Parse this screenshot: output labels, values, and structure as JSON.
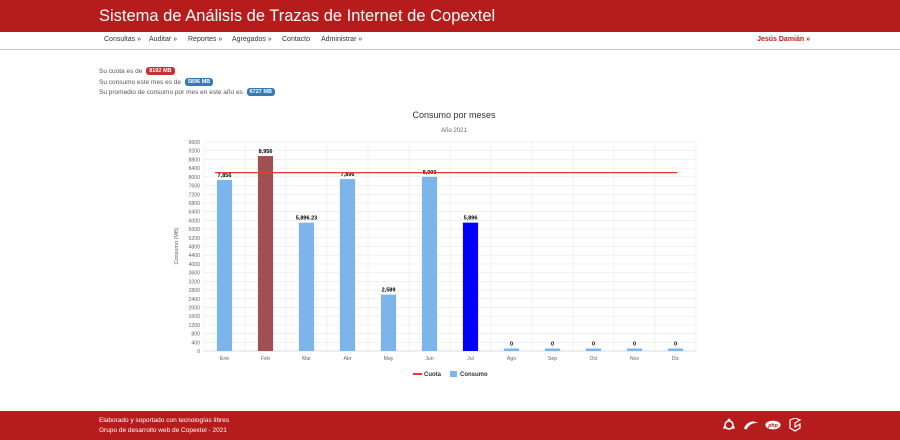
{
  "header": {
    "title": "Sistema de Análisis de Trazas de Internet de Copextel"
  },
  "nav": {
    "items": [
      {
        "label": "Consultas »"
      },
      {
        "label": "Auditar »"
      },
      {
        "label": "Reportes »"
      },
      {
        "label": "Agregados »"
      },
      {
        "label": "Contacto"
      },
      {
        "label": "Administrar »"
      }
    ],
    "user": "Jesús Damián »"
  },
  "info": {
    "quota_label": "Su cuota es de",
    "quota_value": "8192 MB",
    "month_label": "Su consumo este mes es de",
    "month_value": "5896 MB",
    "avg_label": "Su promedio de consumo por mes en este año es",
    "avg_value": "6727 MB"
  },
  "footer": {
    "line1": "Elaborado y soportado con tecnologías libres",
    "line2": "Grupo de desarrollo web de Copextel - 2021",
    "icons": [
      "ubuntu-icon",
      "debian-swirl-icon",
      "php-icon",
      "laravel-icon"
    ]
  },
  "colors": {
    "brand": "#b71c1c",
    "bar": "#7cb5ec",
    "bar_over": "#a05050",
    "bar_current": "#0000ff",
    "quota_line": "#e53935"
  },
  "chart_data": {
    "type": "bar",
    "title": "Consumo por meses",
    "subtitle": "Año 2021",
    "ylabel": "Consumo (MB)",
    "xlabel": "",
    "ylim": [
      0,
      9600
    ],
    "yticks": [
      0,
      400,
      800,
      1200,
      1600,
      2000,
      2400,
      2800,
      3200,
      3600,
      4000,
      4400,
      4800,
      5200,
      5600,
      6000,
      6400,
      6800,
      7200,
      7600,
      8000,
      8400,
      8800,
      9200,
      9600
    ],
    "categories": [
      "Ene",
      "Feb",
      "Mar",
      "Abr",
      "May",
      "Jun",
      "Jul",
      "Ago",
      "Sep",
      "Oct",
      "Nov",
      "Dic"
    ],
    "series": [
      {
        "name": "Consumo",
        "values": [
          7856,
          8956,
          5896.23,
          7896,
          2589,
          8000,
          5896,
          0,
          0,
          0,
          0,
          0
        ],
        "labels": [
          "7,856",
          "8,956",
          "5,896.23",
          "7,896",
          "2,589",
          "8,000",
          "5,896",
          "0",
          "0",
          "0",
          "0",
          "0"
        ],
        "highlight": {
          "1": "over",
          "6": "current"
        }
      },
      {
        "name": "Cuota",
        "type": "line",
        "value": 8192
      }
    ],
    "grid": true,
    "legend": "bottom-center"
  }
}
